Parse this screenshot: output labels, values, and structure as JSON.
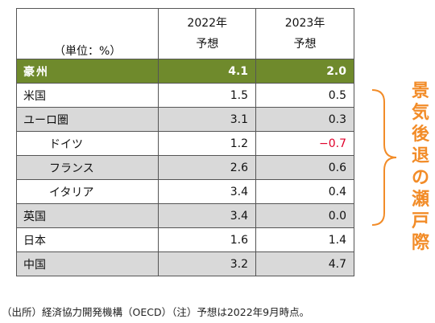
{
  "header": {
    "unit_label": "（単位：%）",
    "col1_year": "2022年",
    "col1_sub": "予想",
    "col2_year": "2023年",
    "col2_sub": "予想"
  },
  "rows": [
    {
      "name": "豪州",
      "v2022": "4.1",
      "v2023": "2.0"
    },
    {
      "name": "米国",
      "v2022": "1.5",
      "v2023": "0.5"
    },
    {
      "name": "ユーロ圏",
      "v2022": "3.1",
      "v2023": "0.3"
    },
    {
      "name": "ドイツ",
      "v2022": "1.2",
      "v2023": "−0.7"
    },
    {
      "name": "フランス",
      "v2022": "2.6",
      "v2023": "0.6"
    },
    {
      "name": "イタリア",
      "v2022": "3.4",
      "v2023": "0.4"
    },
    {
      "name": "英国",
      "v2022": "3.4",
      "v2023": "0.0"
    },
    {
      "name": "日本",
      "v2022": "1.6",
      "v2023": "1.4"
    },
    {
      "name": "中国",
      "v2022": "3.2",
      "v2023": "4.7"
    }
  ],
  "side_label": [
    "景",
    "気",
    "後",
    "退",
    "の",
    "瀬",
    "戸",
    "際"
  ],
  "footnote": "（出所）経済協力開発機構（OECD）（注）予想は2022年9月時点。",
  "colors": {
    "highlight": "#6f8a2c",
    "shade": "#d9d9d9",
    "negative": "#e0002a",
    "accent": "#f28c28"
  }
}
